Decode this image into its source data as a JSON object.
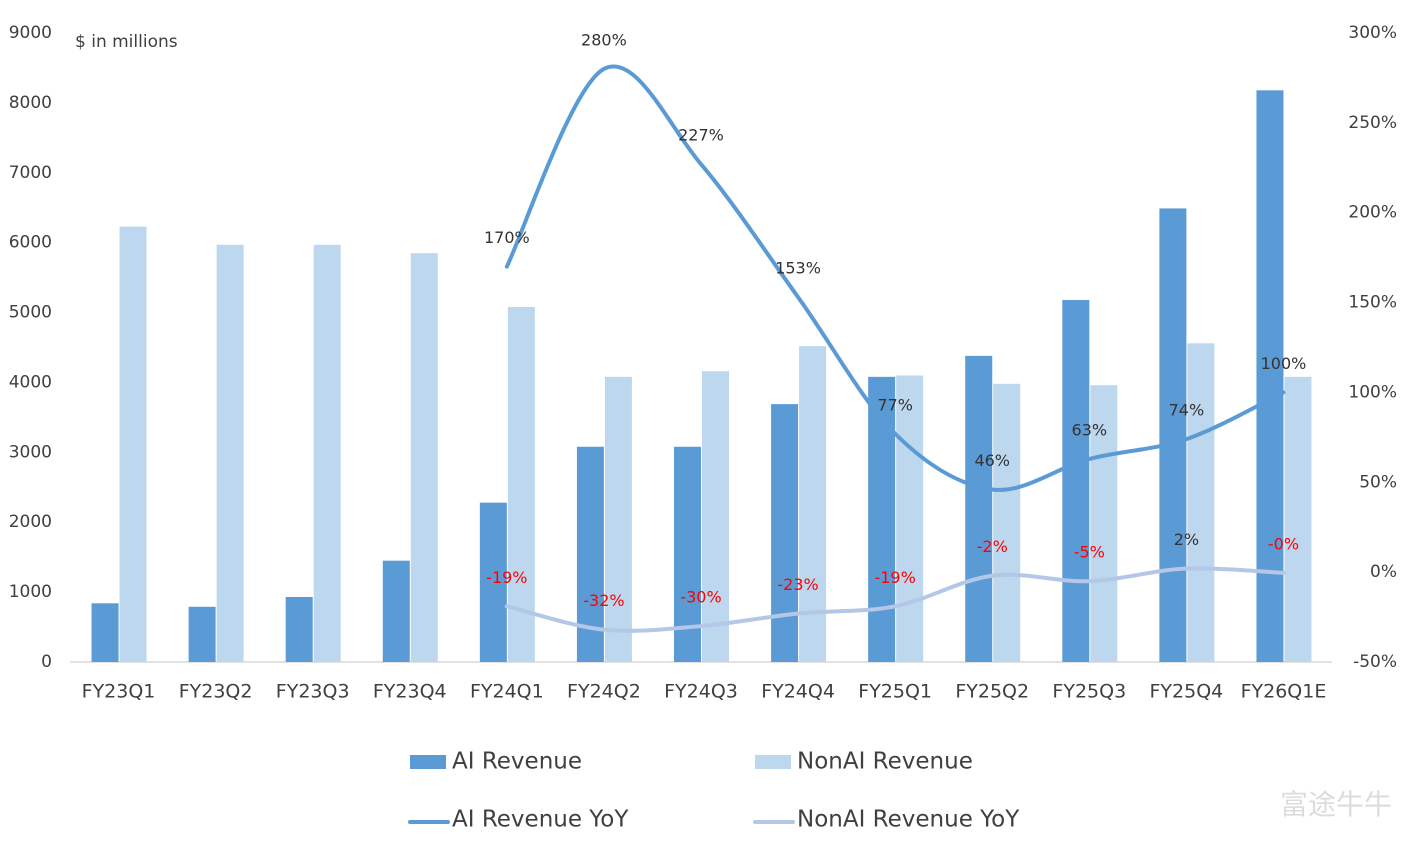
{
  "chart_data": {
    "type": "combo",
    "annotation": "$ in millions",
    "watermark": "富途牛牛",
    "categories": [
      "FY23Q1",
      "FY23Q2",
      "FY23Q3",
      "FY23Q4",
      "FY24Q1",
      "FY24Q2",
      "FY24Q3",
      "FY24Q4",
      "FY25Q1",
      "FY25Q2",
      "FY25Q3",
      "FY25Q4",
      "FY26Q1E"
    ],
    "series": [
      {
        "name": "AI Revenue",
        "type": "bar",
        "color": "#5b9bd5",
        "values": [
          840,
          790,
          930,
          1450,
          2280,
          3080,
          3080,
          3690,
          4080,
          4380,
          5180,
          6490,
          8180
        ]
      },
      {
        "name": "NonAI Revenue",
        "type": "bar",
        "color": "#bdd7ee",
        "values": [
          6230,
          5970,
          5970,
          5850,
          5080,
          4080,
          4160,
          4520,
          4100,
          3980,
          3960,
          4560,
          4080
        ]
      },
      {
        "name": "AI Revenue YoY",
        "type": "line",
        "axis": "y2",
        "color": "#5b9bd5",
        "label_color": "#333333",
        "values": [
          null,
          null,
          null,
          null,
          170,
          280,
          227,
          153,
          77,
          46,
          63,
          74,
          100
        ],
        "value_labels": [
          null,
          null,
          null,
          null,
          "170%",
          "280%",
          "227%",
          "153%",
          "77%",
          "46%",
          "63%",
          "74%",
          "100%"
        ]
      },
      {
        "name": "NonAI Revenue YoY",
        "type": "line",
        "axis": "y2",
        "color": "#b4c7e7",
        "label_colors": [
          null,
          null,
          null,
          null,
          "#ff0000",
          "#ff0000",
          "#ff0000",
          "#ff0000",
          "#ff0000",
          "#ff0000",
          "#ff0000",
          "#333333",
          "#ff0000"
        ],
        "values": [
          null,
          null,
          null,
          null,
          -19,
          -32,
          -30,
          -23,
          -19,
          -2,
          -5,
          2,
          -0.4
        ],
        "value_labels": [
          null,
          null,
          null,
          null,
          "-19%",
          "-32%",
          "-30%",
          "-23%",
          "-19%",
          "-2%",
          "-5%",
          "2%",
          "-0%"
        ]
      }
    ],
    "ylim": [
      0,
      9000
    ],
    "yticks": [
      0,
      1000,
      2000,
      3000,
      4000,
      5000,
      6000,
      7000,
      8000,
      9000
    ],
    "y2lim": [
      -50,
      300
    ],
    "y2ticks": [
      {
        "value": -50,
        "label": "-50%"
      },
      {
        "value": 0,
        "label": "0%"
      },
      {
        "value": 50,
        "label": "50%"
      },
      {
        "value": 100,
        "label": "100%"
      },
      {
        "value": 150,
        "label": "150%"
      },
      {
        "value": 200,
        "label": "200%"
      },
      {
        "value": 250,
        "label": "250%"
      },
      {
        "value": 300,
        "label": "300%"
      }
    ],
    "grid": false
  }
}
